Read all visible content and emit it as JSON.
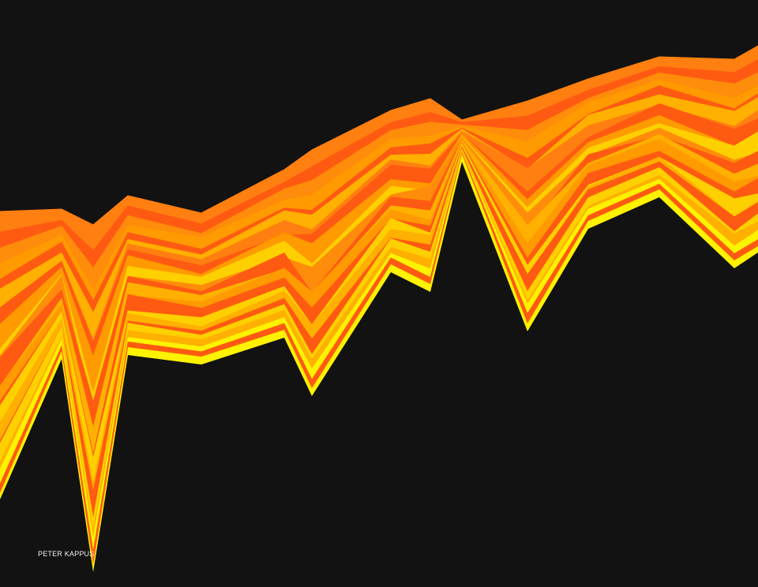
{
  "artwork": {
    "signature": "PETER KAPPUS",
    "colors": {
      "background": "#121212",
      "bands": [
        "#ff7f11",
        "#ff8c0a",
        "#ff5a12",
        "#ff9a00",
        "#ffb000",
        "#ffd000",
        "#fff200"
      ],
      "signature_text": "#f2f2f2"
    }
  }
}
